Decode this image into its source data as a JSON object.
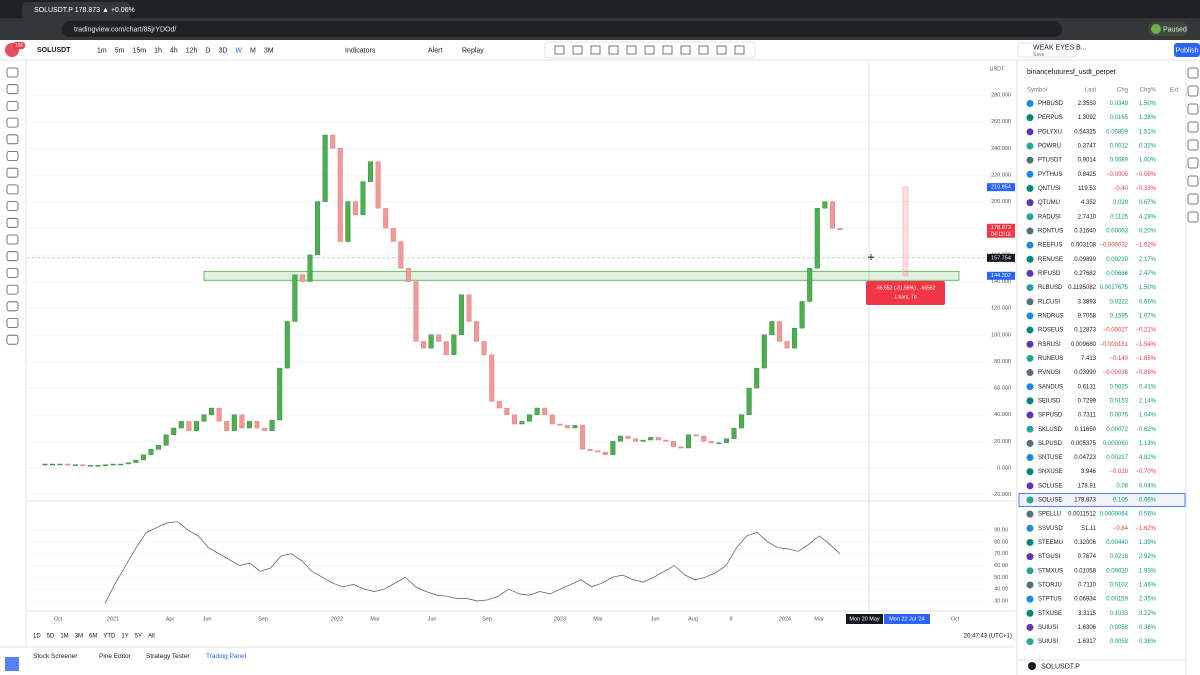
{
  "browser": {
    "tab_title": "SOLUSDT.P 178.873 ▲ +0.06%",
    "url": "tradingview.com/chart/85jrYDOd/",
    "profile_status": "Paused"
  },
  "toolbar": {
    "symbol": "SOLUSDT",
    "intervals": [
      "1m",
      "5m",
      "15m",
      "1h",
      "4h",
      "12h",
      "D",
      "3D",
      "W",
      "M",
      "3M"
    ],
    "indicators": "Indicators",
    "alert": "Alert",
    "replay": "Replay",
    "layout_name": "WEAK EYES B...",
    "save": "Save",
    "publish": "Publish",
    "notifications": "156"
  },
  "chart": {
    "currency": "USDT",
    "closes": [
      3,
      3,
      3,
      2.5,
      2.5,
      2,
      2,
      2,
      2.5,
      3,
      3,
      4,
      6,
      10,
      14,
      17,
      25,
      30,
      35,
      28,
      35,
      40,
      45,
      35,
      28,
      40,
      30,
      35,
      30,
      28,
      36,
      75,
      110,
      145,
      140,
      160,
      200,
      250,
      240,
      170,
      200,
      190,
      215,
      230,
      195,
      180,
      170,
      150,
      140,
      95,
      90,
      100,
      95,
      85,
      100,
      130,
      110,
      95,
      85,
      50,
      45,
      40,
      33,
      35,
      40,
      45,
      40,
      33,
      32,
      30,
      32,
      14,
      13,
      12,
      10,
      20,
      24,
      22,
      20,
      21,
      23,
      21,
      20,
      16,
      15,
      25,
      24,
      20,
      19,
      19,
      22,
      30,
      40,
      60,
      75,
      100,
      110,
      95,
      90,
      105,
      125,
      150,
      195,
      200,
      180,
      178.873
    ],
    "yticks": [
      {
        "value": 280,
        "label": "280.000"
      },
      {
        "value": 260,
        "label": "260.000"
      },
      {
        "value": 240,
        "label": "240.000"
      },
      {
        "value": 220,
        "label": "220.000"
      },
      {
        "value": 200,
        "label": "200.000"
      },
      {
        "value": 180,
        "label": "180.000"
      },
      {
        "value": 160,
        "label": "160.000"
      },
      {
        "value": 140,
        "label": "140.000"
      },
      {
        "value": 120,
        "label": "120.000"
      },
      {
        "value": 100,
        "label": "100.000"
      },
      {
        "value": 80,
        "label": "80.000"
      },
      {
        "value": 60,
        "label": "60.000"
      },
      {
        "value": 40,
        "label": "40.000"
      },
      {
        "value": 20,
        "label": "20.000"
      },
      {
        "value": 0,
        "label": "0.000"
      },
      {
        "value": -20,
        "label": "-20.000"
      }
    ],
    "markers": {
      "high": {
        "value": 210.854,
        "label": "210.854"
      },
      "last": {
        "value": 178.873,
        "label": "178.873"
      },
      "countdown": "04:12:16",
      "cursor": {
        "value": 157.754,
        "label": "157.754"
      },
      "zone": {
        "value": 144.302,
        "label": "144.302"
      }
    },
    "measure": {
      "line1": "-66.552 (-31.56%) , -66552",
      "line2": "1 bars, 7d"
    },
    "rsi": [
      28,
      45,
      60,
      75,
      88,
      92,
      96,
      97,
      90,
      85,
      75,
      70,
      65,
      60,
      62,
      55,
      58,
      68,
      70,
      64,
      55,
      50,
      45,
      42,
      44,
      40,
      38,
      40,
      45,
      50,
      42,
      38,
      35,
      34,
      32,
      32,
      30,
      31,
      34,
      40,
      36,
      35,
      38,
      36,
      40,
      44,
      48,
      42,
      45,
      50,
      52,
      48,
      46,
      50,
      55,
      60,
      52,
      48,
      50,
      54,
      60,
      75,
      85,
      88,
      80,
      75,
      74,
      72,
      78,
      85,
      78,
      70
    ],
    "rsi_ticks": [
      {
        "value": 90,
        "label": "90.00"
      },
      {
        "value": 80,
        "label": "80.00"
      },
      {
        "value": 70,
        "label": "70.00"
      },
      {
        "value": 60,
        "label": "60.00"
      },
      {
        "value": 50,
        "label": "50.00"
      },
      {
        "value": 40,
        "label": "40.00"
      },
      {
        "value": 30,
        "label": "30.00"
      }
    ],
    "time_labels": [
      "Oct",
      "2021",
      "Apr",
      "Jun",
      "Sep",
      "2022",
      "Mar",
      "Jun",
      "Sep",
      "2023",
      "Mar",
      "Jun",
      "Aug",
      "9",
      "2024",
      "Mar"
    ],
    "time_highlight_start": "Mon 20 May",
    "time_highlight_end": "Mon 22 Jul '24",
    "time_after": "Oct"
  },
  "bottom": {
    "ranges": [
      "1D",
      "5D",
      "1M",
      "3M",
      "6M",
      "YTD",
      "1Y",
      "5Y",
      "All"
    ],
    "clock": "20:47:43 (UTC+1)",
    "tabs": [
      "Stock Screener",
      "Pine Editor",
      "Strategy Tester",
      "Trading Panel"
    ]
  },
  "watchlist": {
    "name": "binancefuturesf_usdt_perpet",
    "columns": [
      "Symbol",
      "Last",
      "Chg",
      "Chg%",
      "Ext"
    ],
    "rows": [
      [
        "PHBUSD",
        "2.3550",
        "0.0349",
        "1.50%"
      ],
      [
        "PERPUS",
        "1.3092",
        "0.0165",
        "1.28%"
      ],
      [
        "POLYXU",
        "0.54325",
        "0.00809",
        "1.51%"
      ],
      [
        "POWRU",
        "0.3747",
        "0.0012",
        "0.32%"
      ],
      [
        "PTUSDT",
        "0.9014",
        "0.0089",
        "1.00%"
      ],
      [
        "PYTHUS",
        "0.8425",
        "−0.0005",
        "−0.06%"
      ],
      [
        "QNTUSI",
        "119.53",
        "−0.40",
        "−0.33%"
      ],
      [
        "QTUMU",
        "4.352",
        "0.029",
        "0.67%"
      ],
      [
        "RADUSI",
        "2.7410",
        "0.1125",
        "4.28%"
      ],
      [
        "RDNTUS",
        "0.31640",
        "0.00063",
        "0.20%"
      ],
      [
        "REEFUS",
        "0.003108",
        "−0.000032",
        "−1.02%"
      ],
      [
        "RENUSE",
        "0.09899",
        "0.00210",
        "2.17%"
      ],
      [
        "RIFUSD",
        "0.27682",
        "0.00666",
        "2.47%"
      ],
      [
        "RLBUSD",
        "0.1195082",
        "0.0017675",
        "1.50%"
      ],
      [
        "RLCUSI",
        "3.3893",
        "0.0222",
        "0.66%"
      ],
      [
        "RNDRUS",
        "9.7058",
        "0.1595",
        "1.67%"
      ],
      [
        "ROSEUS",
        "0.12873",
        "−0.00027",
        "−0.21%"
      ],
      [
        "RSRUSI",
        "0.009680",
        "−0.000151",
        "−1.54%"
      ],
      [
        "RUNEUS",
        "7.413",
        "−0.140",
        "−1.85%"
      ],
      [
        "RVNUSI",
        "0.03990",
        "−0.00036",
        "−0.89%"
      ],
      [
        "SANDUS",
        "0.6131",
        "0.0025",
        "0.41%"
      ],
      [
        "SEIUSD",
        "0.7299",
        "0.0153",
        "2.14%"
      ],
      [
        "SFPUSD",
        "0.7311",
        "0.0075",
        "1.04%"
      ],
      [
        "SKLUSD",
        "0.11650",
        "0.00072",
        "0.62%"
      ],
      [
        "SLPUSD",
        "0.005375",
        "0.000060",
        "1.13%"
      ],
      [
        "SNTUSE",
        "0.04723",
        "0.00217",
        "4.82%"
      ],
      [
        "SNXUSE",
        "3.946",
        "−0.028",
        "−0.70%"
      ],
      [
        "SOLUSE",
        "178.81",
        "0.08",
        "0.04%"
      ],
      [
        "SOLUSE",
        "178.873",
        "0.105",
        "0.06%"
      ],
      [
        "SPELLU",
        "0.0011512",
        "0.0000064",
        "0.56%"
      ],
      [
        "SSVUSD",
        "51.11",
        "−0.84",
        "−1.62%"
      ],
      [
        "STEEMU",
        "0.32006",
        "0.00440",
        "1.39%"
      ],
      [
        "STGUSI",
        "0.7674",
        "0.0218",
        "2.92%"
      ],
      [
        "STMXUS",
        "0.01058",
        "0.00020",
        "1.93%"
      ],
      [
        "STORJU",
        "0.7110",
        "0.0102",
        "1.46%"
      ],
      [
        "STPTUS",
        "0.06934",
        "0.00159",
        "2.35%"
      ],
      [
        "STXUSE",
        "3.3115",
        "0.1033",
        "3.22%"
      ],
      [
        "SUIUSI",
        "1.6306",
        "0.0058",
        "0.36%"
      ],
      [
        "SUIUSI",
        "1.6317",
        "0.0058",
        "0.36%"
      ]
    ],
    "footer_symbol": "SOLUSDT.P"
  }
}
